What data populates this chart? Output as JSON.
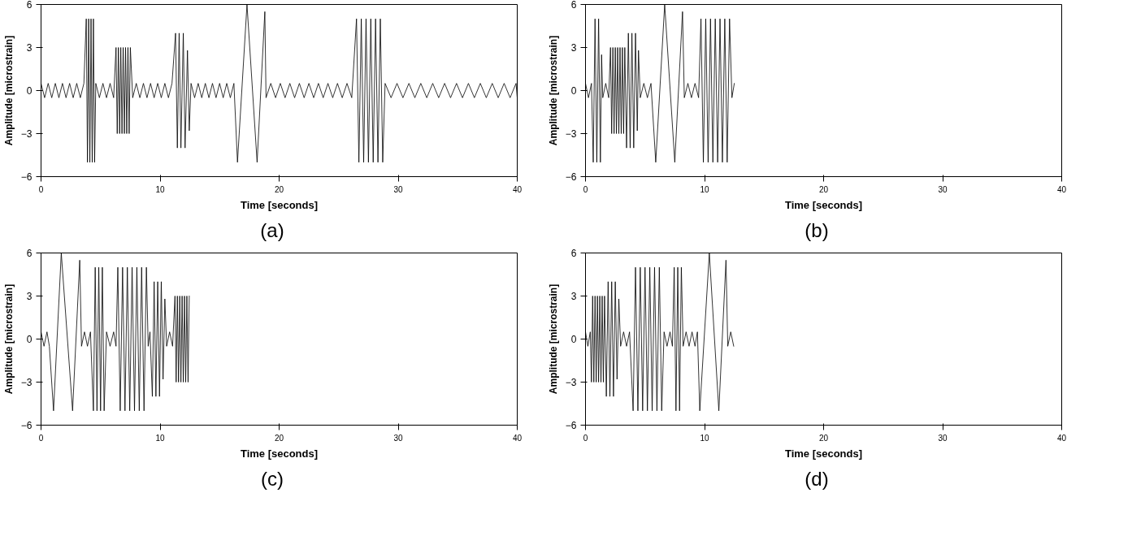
{
  "chart_data": [
    {
      "type": "line",
      "xlabel": "Time [seconds]",
      "ylabel": "Amplitude [microstrain]",
      "annotations": [
        "(a)"
      ],
      "xlim": [
        0,
        40
      ],
      "ylim": [
        -6,
        6
      ],
      "xticks": [
        0,
        10,
        20,
        30,
        40
      ],
      "yticks": [
        -6,
        -3,
        0,
        3,
        6
      ],
      "grid": false,
      "series": [
        {
          "color": "#000000",
          "x": [
            0,
            0.3,
            0.6,
            0.9,
            1.2,
            1.5,
            1.8,
            2.1,
            2.4,
            2.7,
            3.0,
            3.3,
            3.6,
            3.8,
            3.9,
            4.0,
            4.1,
            4.2,
            4.3,
            4.4,
            4.5,
            4.6,
            4.9,
            5.2,
            5.5,
            5.8,
            6.1,
            6.3,
            6.4,
            6.5,
            6.6,
            6.7,
            6.8,
            6.9,
            7.0,
            7.1,
            7.2,
            7.3,
            7.4,
            7.5,
            7.7,
            8.0,
            8.3,
            8.6,
            8.9,
            9.2,
            9.5,
            9.8,
            10.1,
            10.4,
            10.7,
            11.0,
            11.3,
            11.45,
            11.6,
            11.75,
            11.95,
            12.1,
            12.3,
            12.45,
            12.6,
            12.9,
            13.2,
            13.5,
            13.8,
            14.1,
            14.4,
            14.7,
            15.0,
            15.3,
            15.6,
            15.9,
            16.2,
            16.5,
            17.3,
            18.15,
            18.8,
            18.9,
            19.3,
            19.7,
            20.1,
            20.5,
            20.9,
            21.3,
            21.7,
            22.1,
            22.5,
            22.9,
            23.3,
            23.7,
            24.1,
            24.5,
            24.9,
            25.3,
            25.7,
            26.1,
            26.5,
            26.7,
            26.9,
            27.1,
            27.3,
            27.5,
            27.7,
            27.9,
            28.1,
            28.3,
            28.5,
            28.7,
            28.9,
            29.4,
            29.9,
            30.4,
            30.9,
            31.4,
            31.9,
            32.4,
            32.9,
            33.4,
            33.9,
            34.4,
            34.9,
            35.4,
            35.9,
            36.4,
            36.9,
            37.4,
            37.9,
            38.4,
            38.9,
            39.4,
            39.9,
            40
          ],
          "values": [
            0.5,
            -0.5,
            0.5,
            -0.5,
            0.5,
            -0.5,
            0.5,
            -0.5,
            0.5,
            -0.5,
            0.5,
            -0.5,
            0.5,
            5,
            -5,
            5,
            -5,
            5,
            -5,
            5,
            -5,
            0.5,
            -0.5,
            0.5,
            -0.5,
            0.5,
            -0.5,
            3,
            -3,
            3,
            -3,
            3,
            -3,
            3,
            -3,
            3,
            -3,
            3,
            -3,
            3,
            -0.5,
            0.5,
            -0.5,
            0.5,
            -0.5,
            0.5,
            -0.5,
            0.5,
            -0.5,
            0.5,
            -0.5,
            0.5,
            4,
            -4,
            4,
            -4,
            4,
            -4,
            2.8,
            -2.8,
            0.5,
            -0.5,
            0.5,
            -0.5,
            0.5,
            -0.5,
            0.5,
            -0.5,
            0.5,
            -0.5,
            0.5,
            -0.5,
            0.5,
            -5,
            6,
            -5,
            5.5,
            -0.5,
            0.5,
            -0.5,
            0.5,
            -0.5,
            0.5,
            -0.5,
            0.5,
            -0.5,
            0.5,
            -0.5,
            0.5,
            -0.5,
            0.5,
            -0.5,
            0.5,
            -0.5,
            0.5,
            -0.5,
            5,
            -5,
            5,
            -5,
            5,
            -5,
            5,
            -5,
            5,
            -5,
            5,
            -5,
            0.5,
            -0.5,
            0.5,
            -0.5,
            0.5,
            -0.5,
            0.5,
            -0.5,
            0.5,
            -0.5,
            0.5,
            -0.5,
            0.5,
            -0.5,
            0.5,
            -0.5,
            0.5,
            -0.5,
            0.5,
            -0.5,
            0.5,
            -0.5,
            0.5,
            -0.5
          ]
        }
      ]
    },
    {
      "type": "line",
      "xlabel": "Time [seconds]",
      "ylabel": "Amplitude [microstrain]",
      "annotations": [
        "(b)"
      ],
      "xlim": [
        0,
        40
      ],
      "ylim": [
        -6,
        6
      ],
      "xticks": [
        0,
        10,
        20,
        30,
        40
      ],
      "yticks": [
        -6,
        -3,
        0,
        3,
        6
      ],
      "grid": false,
      "series": [
        {
          "color": "#000000",
          "x": [
            0,
            0.25,
            0.5,
            0.65,
            0.8,
            0.95,
            1.1,
            1.25,
            1.35,
            1.45,
            1.7,
            1.95,
            2.1,
            2.2,
            2.3,
            2.4,
            2.5,
            2.6,
            2.7,
            2.8,
            2.9,
            3.0,
            3.1,
            3.2,
            3.3,
            3.45,
            3.6,
            3.75,
            3.9,
            4.05,
            4.2,
            4.35,
            4.45,
            4.6,
            4.9,
            5.2,
            5.5,
            5.9,
            6.65,
            7.5,
            8.15,
            8.3,
            8.6,
            8.9,
            9.2,
            9.5,
            9.7,
            9.9,
            10.1,
            10.3,
            10.5,
            10.7,
            10.9,
            11.1,
            11.3,
            11.5,
            11.7,
            11.9,
            12.1,
            12.3,
            12.5
          ],
          "values": [
            0.5,
            -0.5,
            0.5,
            -5,
            5,
            -5,
            5,
            -5,
            2.5,
            -0.5,
            0.5,
            -0.5,
            3,
            -3,
            3,
            -3,
            3,
            -3,
            3,
            -3,
            3,
            -3,
            3,
            -3,
            3,
            -4,
            4,
            -4,
            4,
            -4,
            4,
            -2.8,
            2.8,
            -0.5,
            0.5,
            -0.5,
            0.5,
            -5,
            6,
            -5,
            5.5,
            -0.5,
            0.5,
            -0.5,
            0.5,
            -0.5,
            5,
            -5,
            5,
            -5,
            5,
            -5,
            5,
            -5,
            5,
            -5,
            5,
            -5,
            5,
            -0.5,
            0.5
          ]
        }
      ]
    },
    {
      "type": "line",
      "xlabel": "Time [seconds]",
      "ylabel": "Amplitude [microstrain]",
      "annotations": [
        "(c)"
      ],
      "xlim": [
        0,
        40
      ],
      "ylim": [
        -6,
        6
      ],
      "xticks": [
        0,
        10,
        20,
        30,
        40
      ],
      "yticks": [
        -6,
        -3,
        0,
        3,
        6
      ],
      "grid": false,
      "series": [
        {
          "color": "#000000",
          "x": [
            0,
            0.25,
            0.5,
            0.7,
            1.05,
            1.7,
            2.65,
            3.25,
            3.4,
            3.65,
            3.9,
            4.15,
            4.4,
            4.55,
            4.7,
            4.85,
            5.0,
            5.15,
            5.3,
            5.5,
            5.8,
            6.1,
            6.3,
            6.45,
            6.65,
            6.85,
            7.05,
            7.25,
            7.45,
            7.65,
            7.85,
            8.05,
            8.25,
            8.45,
            8.65,
            8.85,
            9.0,
            9.15,
            9.35,
            9.5,
            9.65,
            9.8,
            9.95,
            10.1,
            10.25,
            10.4,
            10.55,
            10.8,
            11.05,
            11.25,
            11.35,
            11.45,
            11.55,
            11.65,
            11.75,
            11.85,
            11.95,
            12.05,
            12.15,
            12.25,
            12.35,
            12.45
          ],
          "values": [
            0.5,
            -0.5,
            0.5,
            -0.5,
            -5,
            6,
            -5,
            5.5,
            -0.5,
            0.5,
            -0.5,
            0.5,
            -5,
            5,
            -5,
            5,
            -5,
            5,
            -5,
            0.5,
            -0.5,
            0.5,
            -0.5,
            5,
            -5,
            5,
            -5,
            5,
            -5,
            5,
            -5,
            5,
            -5,
            5,
            -5,
            5,
            -0.5,
            0.5,
            -4,
            4,
            -4,
            4,
            -4,
            4,
            -2.8,
            2.8,
            -0.5,
            0.5,
            -0.5,
            3,
            -3,
            3,
            -3,
            3,
            -3,
            3,
            -3,
            3,
            -3,
            3,
            -3,
            3
          ]
        }
      ]
    },
    {
      "type": "line",
      "xlabel": "Time [seconds]",
      "ylabel": "Amplitude [microstrain]",
      "annotations": [
        "(d)"
      ],
      "xlim": [
        0,
        40
      ],
      "ylim": [
        -6,
        6
      ],
      "xticks": [
        0,
        10,
        20,
        30,
        40
      ],
      "yticks": [
        -6,
        -3,
        0,
        3,
        6
      ],
      "grid": false,
      "series": [
        {
          "color": "#000000",
          "x": [
            0,
            0.2,
            0.4,
            0.5,
            0.6,
            0.7,
            0.8,
            0.9,
            1.0,
            1.1,
            1.2,
            1.3,
            1.4,
            1.5,
            1.6,
            1.75,
            1.9,
            2.05,
            2.2,
            2.35,
            2.5,
            2.65,
            2.8,
            2.95,
            3.2,
            3.45,
            3.7,
            4.0,
            4.2,
            4.4,
            4.6,
            4.8,
            5.0,
            5.2,
            5.4,
            5.6,
            5.8,
            6.0,
            6.2,
            6.4,
            6.6,
            6.85,
            7.1,
            7.3,
            7.45,
            7.6,
            7.75,
            7.9,
            8.05,
            8.2,
            8.45,
            8.7,
            8.95,
            9.2,
            9.4,
            9.6,
            10.4,
            11.2,
            11.8,
            11.95,
            12.2,
            12.45
          ],
          "values": [
            0.5,
            -0.5,
            0.5,
            -3,
            3,
            -3,
            3,
            -3,
            3,
            -3,
            3,
            -3,
            3,
            -3,
            3,
            -4,
            4,
            -4,
            4,
            -4,
            4,
            -2.8,
            2.8,
            -0.5,
            0.5,
            -0.5,
            0.5,
            -5,
            5,
            -5,
            5,
            -5,
            5,
            -5,
            5,
            -5,
            5,
            -5,
            5,
            -5,
            0.5,
            -0.5,
            0.5,
            -0.5,
            5,
            -5,
            5,
            -5,
            5,
            -0.5,
            0.5,
            -0.5,
            0.5,
            -0.5,
            0.5,
            -5,
            6,
            -5,
            5.5,
            -0.5,
            0.5,
            -0.5
          ]
        }
      ]
    }
  ]
}
